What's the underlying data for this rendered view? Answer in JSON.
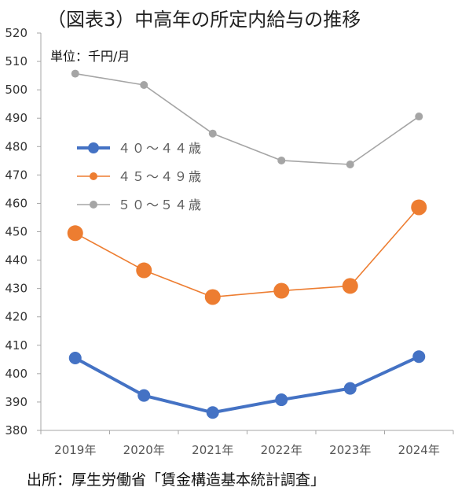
{
  "chart_data": {
    "type": "line",
    "title": "（図表3）中高年の所定内給与の推移",
    "unit_label": "単位：千円/月",
    "categories": [
      "2019年",
      "2020年",
      "2021年",
      "2022年",
      "2023年",
      "2024年"
    ],
    "ylim": [
      380,
      520
    ],
    "yticks": [
      380,
      390,
      400,
      410,
      420,
      430,
      440,
      450,
      460,
      470,
      480,
      490,
      500,
      510,
      520
    ],
    "grid": false,
    "legend_position": "left",
    "series": [
      {
        "name": "４０～４４歳",
        "color": "#4472C4",
        "values": [
          405.5,
          392.3,
          386.3,
          390.8,
          394.8,
          406.0
        ]
      },
      {
        "name": "４５～４９歳",
        "color": "#ED7D31",
        "values": [
          449.5,
          436.4,
          427.0,
          429.2,
          430.9,
          458.6
        ]
      },
      {
        "name": "５０～５４歳",
        "color": "#A5A5A5",
        "values": [
          505.7,
          501.7,
          484.6,
          475.1,
          473.7,
          490.6
        ]
      }
    ]
  },
  "source": "出所：厚生労働省「賃金構造基本統計調査」"
}
